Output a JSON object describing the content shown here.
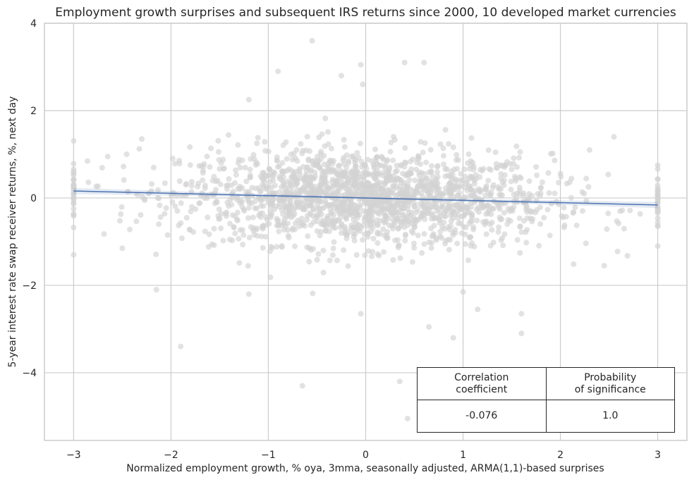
{
  "chart_data": {
    "type": "scatter",
    "title": "Employment growth surprises and subsequent IRS returns since 2000, 10 developed market currencies",
    "xlabel": "Normalized employment growth, % oya, 3mma, seasonally adjusted, ARMA(1,1)-based surprises",
    "ylabel": "5-year interest rate swap receiver returns, %, next day",
    "xlim": [
      -3.3,
      3.3
    ],
    "ylim": [
      -5.55,
      4.0
    ],
    "xticks": [
      -3,
      -2,
      -1,
      0,
      1,
      2,
      3
    ],
    "xtick_labels": [
      "−3",
      "−2",
      "−1",
      "0",
      "1",
      "2",
      "3"
    ],
    "yticks": [
      -4,
      -2,
      0,
      2,
      4
    ],
    "ytick_labels": [
      "−4",
      "−2",
      "0",
      "2",
      "4"
    ],
    "grid": true,
    "regression_line": {
      "x": [
        -3,
        3
      ],
      "y": [
        0.16,
        -0.16
      ]
    },
    "point_color": "#d3d3d3",
    "line_color": "#4c72b0",
    "highlight_points": [
      {
        "x": -0.55,
        "y": 3.6
      },
      {
        "x": -0.9,
        "y": 2.9
      },
      {
        "x": -0.25,
        "y": 2.8
      },
      {
        "x": -0.05,
        "y": 3.05
      },
      {
        "x": 0.4,
        "y": 3.1
      },
      {
        "x": 0.6,
        "y": 3.1
      },
      {
        "x": -0.03,
        "y": 2.6
      },
      {
        "x": -1.2,
        "y": 2.25
      },
      {
        "x": -1.9,
        "y": -3.4
      },
      {
        "x": -2.15,
        "y": -2.1
      },
      {
        "x": -0.65,
        "y": -4.3
      },
      {
        "x": 0.35,
        "y": -4.2
      },
      {
        "x": 0.43,
        "y": -5.05
      },
      {
        "x": 0.9,
        "y": -3.2
      },
      {
        "x": 0.65,
        "y": -2.95
      },
      {
        "x": 1.6,
        "y": -3.1
      },
      {
        "x": 1.6,
        "y": -2.65
      },
      {
        "x": 2.55,
        "y": 1.4
      },
      {
        "x": 2.3,
        "y": 1.1
      },
      {
        "x": -2.3,
        "y": 1.35
      },
      {
        "x": -2.65,
        "y": 0.95
      },
      {
        "x": -3.0,
        "y": -1.3
      },
      {
        "x": 3.0,
        "y": -1.1
      },
      {
        "x": 3.0,
        "y": 0.75
      },
      {
        "x": 2.45,
        "y": -1.55
      },
      {
        "x": -2.5,
        "y": -1.15
      },
      {
        "x": -1.2,
        "y": -2.2
      },
      {
        "x": 1.15,
        "y": -2.55
      },
      {
        "x": 1.0,
        "y": -2.15
      },
      {
        "x": -0.05,
        "y": -2.65
      }
    ],
    "n_points": 1900
  },
  "stats_table": {
    "headers": [
      "Correlation\ncoefficient",
      "Probability\nof significance"
    ],
    "values": [
      "-0.076",
      "1.0"
    ]
  }
}
